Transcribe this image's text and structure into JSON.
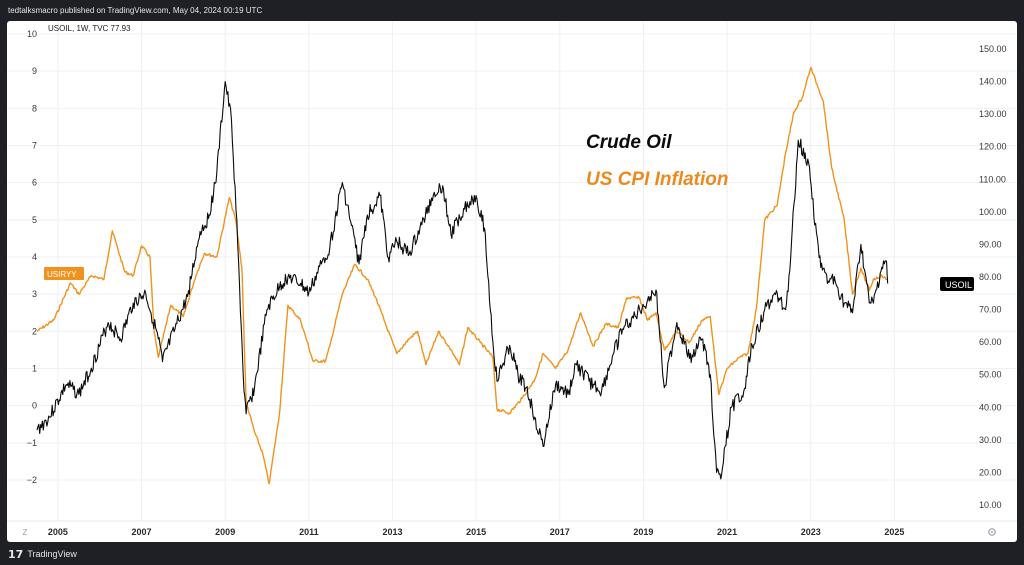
{
  "header": {
    "published_text": "tedtalksmacro published on TradingView.com, May 04, 2024 00:19 UTC"
  },
  "footer": {
    "brand": "TradingView",
    "logo_glyph": "17"
  },
  "chart_data": {
    "type": "line",
    "symbol_info": "USOIL, 1W, TVC  77.93",
    "annotations": {
      "oil_label": "Crude Oil",
      "cpi_label": "US CPI Inflation"
    },
    "left_axis": {
      "ticks": [
        "10",
        "9",
        "8",
        "7",
        "6",
        "5",
        "4",
        "3",
        "2",
        "1",
        "0",
        "−1",
        "−2"
      ],
      "range": [
        -2.3,
        10
      ]
    },
    "right_axis": {
      "ticks": [
        "150.00",
        "140.00",
        "130.00",
        "120.00",
        "110.00",
        "100.00",
        "90.00",
        "80.00",
        "70.00",
        "60.00",
        "50.00",
        "40.00",
        "30.00",
        "20.00",
        "10.00"
      ],
      "range": [
        5,
        155
      ]
    },
    "x_axis": {
      "ticks": [
        "2005",
        "2007",
        "2009",
        "2011",
        "2013",
        "2015",
        "2017",
        "2019",
        "2021",
        "2023",
        "2025"
      ]
    },
    "tz_label": "Z",
    "badges": {
      "left": "USIRYY",
      "right": "USOIL"
    },
    "colors": {
      "oil": "#0b0b0b",
      "cpi": "#f0931e",
      "cpi_text": "#ec8a1f",
      "grid": "#eef0f3",
      "axis_text": "#3a3a3a"
    },
    "series": [
      {
        "name": "USOIL",
        "axis": "right",
        "points": [
          [
            2004.0,
            33
          ],
          [
            2004.3,
            37
          ],
          [
            2004.7,
            47
          ],
          [
            2005.0,
            44
          ],
          [
            2005.3,
            52
          ],
          [
            2005.7,
            66
          ],
          [
            2006.0,
            61
          ],
          [
            2006.3,
            72
          ],
          [
            2006.6,
            75
          ],
          [
            2006.9,
            61
          ],
          [
            2007.0,
            54
          ],
          [
            2007.3,
            64
          ],
          [
            2007.6,
            74
          ],
          [
            2007.9,
            94
          ],
          [
            2008.1,
            98
          ],
          [
            2008.3,
            112
          ],
          [
            2008.5,
            140
          ],
          [
            2008.65,
            128
          ],
          [
            2008.8,
            90
          ],
          [
            2008.95,
            45
          ],
          [
            2009.0,
            38
          ],
          [
            2009.2,
            46
          ],
          [
            2009.5,
            70
          ],
          [
            2009.8,
            77
          ],
          [
            2010.0,
            80
          ],
          [
            2010.3,
            78
          ],
          [
            2010.5,
            75
          ],
          [
            2010.8,
            84
          ],
          [
            2011.0,
            89
          ],
          [
            2011.3,
            109
          ],
          [
            2011.5,
            97
          ],
          [
            2011.7,
            84
          ],
          [
            2011.9,
            99
          ],
          [
            2012.2,
            105
          ],
          [
            2012.4,
            86
          ],
          [
            2012.6,
            91
          ],
          [
            2012.9,
            87
          ],
          [
            2013.2,
            96
          ],
          [
            2013.5,
            106
          ],
          [
            2013.7,
            108
          ],
          [
            2013.9,
            93
          ],
          [
            2014.2,
            101
          ],
          [
            2014.5,
            105
          ],
          [
            2014.7,
            95
          ],
          [
            2014.9,
            60
          ],
          [
            2015.0,
            48
          ],
          [
            2015.3,
            59
          ],
          [
            2015.5,
            50
          ],
          [
            2015.7,
            46
          ],
          [
            2015.9,
            37
          ],
          [
            2016.1,
            28
          ],
          [
            2016.4,
            47
          ],
          [
            2016.7,
            44
          ],
          [
            2016.9,
            53
          ],
          [
            2017.2,
            48
          ],
          [
            2017.5,
            45
          ],
          [
            2017.8,
            57
          ],
          [
            2018.0,
            64
          ],
          [
            2018.3,
            68
          ],
          [
            2018.6,
            73
          ],
          [
            2018.8,
            76
          ],
          [
            2019.0,
            46
          ],
          [
            2019.3,
            66
          ],
          [
            2019.6,
            55
          ],
          [
            2019.9,
            61
          ],
          [
            2020.1,
            50
          ],
          [
            2020.25,
            20
          ],
          [
            2020.35,
            18
          ],
          [
            2020.6,
            40
          ],
          [
            2020.9,
            45
          ],
          [
            2021.1,
            59
          ],
          [
            2021.4,
            70
          ],
          [
            2021.7,
            75
          ],
          [
            2021.9,
            70
          ],
          [
            2022.0,
            82
          ],
          [
            2022.2,
            122
          ],
          [
            2022.45,
            115
          ],
          [
            2022.7,
            86
          ],
          [
            2022.9,
            78
          ],
          [
            2023.0,
            80
          ],
          [
            2023.3,
            72
          ],
          [
            2023.5,
            69
          ],
          [
            2023.7,
            90
          ],
          [
            2023.9,
            72
          ],
          [
            2024.0,
            72
          ],
          [
            2024.2,
            83
          ],
          [
            2024.3,
            85
          ],
          [
            2024.34,
            78
          ]
        ]
      },
      {
        "name": "USIRYY",
        "axis": "left",
        "points": [
          [
            2004.0,
            2.0
          ],
          [
            2004.4,
            2.3
          ],
          [
            2004.8,
            3.3
          ],
          [
            2005.0,
            3.0
          ],
          [
            2005.3,
            3.5
          ],
          [
            2005.6,
            3.4
          ],
          [
            2005.8,
            4.7
          ],
          [
            2006.1,
            3.6
          ],
          [
            2006.3,
            3.5
          ],
          [
            2006.5,
            4.3
          ],
          [
            2006.7,
            4.0
          ],
          [
            2006.8,
            2.0
          ],
          [
            2006.9,
            1.3
          ],
          [
            2007.2,
            2.7
          ],
          [
            2007.5,
            2.4
          ],
          [
            2007.8,
            3.5
          ],
          [
            2008.0,
            4.1
          ],
          [
            2008.3,
            4.0
          ],
          [
            2008.6,
            5.6
          ],
          [
            2008.75,
            5.0
          ],
          [
            2008.9,
            3.7
          ],
          [
            2009.0,
            0.1
          ],
          [
            2009.2,
            -0.7
          ],
          [
            2009.4,
            -1.3
          ],
          [
            2009.55,
            -2.1
          ],
          [
            2009.8,
            -0.2
          ],
          [
            2010.0,
            2.7
          ],
          [
            2010.3,
            2.3
          ],
          [
            2010.6,
            1.2
          ],
          [
            2010.9,
            1.2
          ],
          [
            2011.0,
            1.6
          ],
          [
            2011.3,
            3.0
          ],
          [
            2011.6,
            3.8
          ],
          [
            2011.9,
            3.4
          ],
          [
            2012.1,
            2.9
          ],
          [
            2012.3,
            2.3
          ],
          [
            2012.6,
            1.4
          ],
          [
            2012.9,
            1.8
          ],
          [
            2013.1,
            2.0
          ],
          [
            2013.3,
            1.1
          ],
          [
            2013.6,
            2.0
          ],
          [
            2013.9,
            1.5
          ],
          [
            2014.1,
            1.1
          ],
          [
            2014.3,
            2.1
          ],
          [
            2014.6,
            1.7
          ],
          [
            2014.9,
            1.3
          ],
          [
            2015.0,
            -0.1
          ],
          [
            2015.3,
            -0.2
          ],
          [
            2015.6,
            0.2
          ],
          [
            2015.9,
            0.7
          ],
          [
            2016.1,
            1.4
          ],
          [
            2016.4,
            1.0
          ],
          [
            2016.7,
            1.5
          ],
          [
            2017.0,
            2.5
          ],
          [
            2017.3,
            1.6
          ],
          [
            2017.6,
            2.2
          ],
          [
            2017.9,
            2.1
          ],
          [
            2018.1,
            2.9
          ],
          [
            2018.4,
            2.9
          ],
          [
            2018.6,
            2.3
          ],
          [
            2018.8,
            2.5
          ],
          [
            2019.0,
            1.5
          ],
          [
            2019.3,
            2.0
          ],
          [
            2019.6,
            1.7
          ],
          [
            2019.9,
            2.3
          ],
          [
            2020.1,
            2.4
          ],
          [
            2020.3,
            0.3
          ],
          [
            2020.5,
            1.0
          ],
          [
            2020.8,
            1.3
          ],
          [
            2021.0,
            1.4
          ],
          [
            2021.2,
            2.6
          ],
          [
            2021.4,
            5.0
          ],
          [
            2021.7,
            5.4
          ],
          [
            2021.9,
            6.8
          ],
          [
            2022.1,
            7.9
          ],
          [
            2022.3,
            8.3
          ],
          [
            2022.5,
            9.1
          ],
          [
            2022.8,
            8.2
          ],
          [
            2023.0,
            6.4
          ],
          [
            2023.3,
            5.0
          ],
          [
            2023.5,
            3.0
          ],
          [
            2023.7,
            3.7
          ],
          [
            2023.9,
            3.1
          ],
          [
            2024.0,
            3.4
          ],
          [
            2024.2,
            3.5
          ],
          [
            2024.3,
            3.4
          ],
          [
            2024.34,
            3.4
          ]
        ]
      }
    ]
  }
}
